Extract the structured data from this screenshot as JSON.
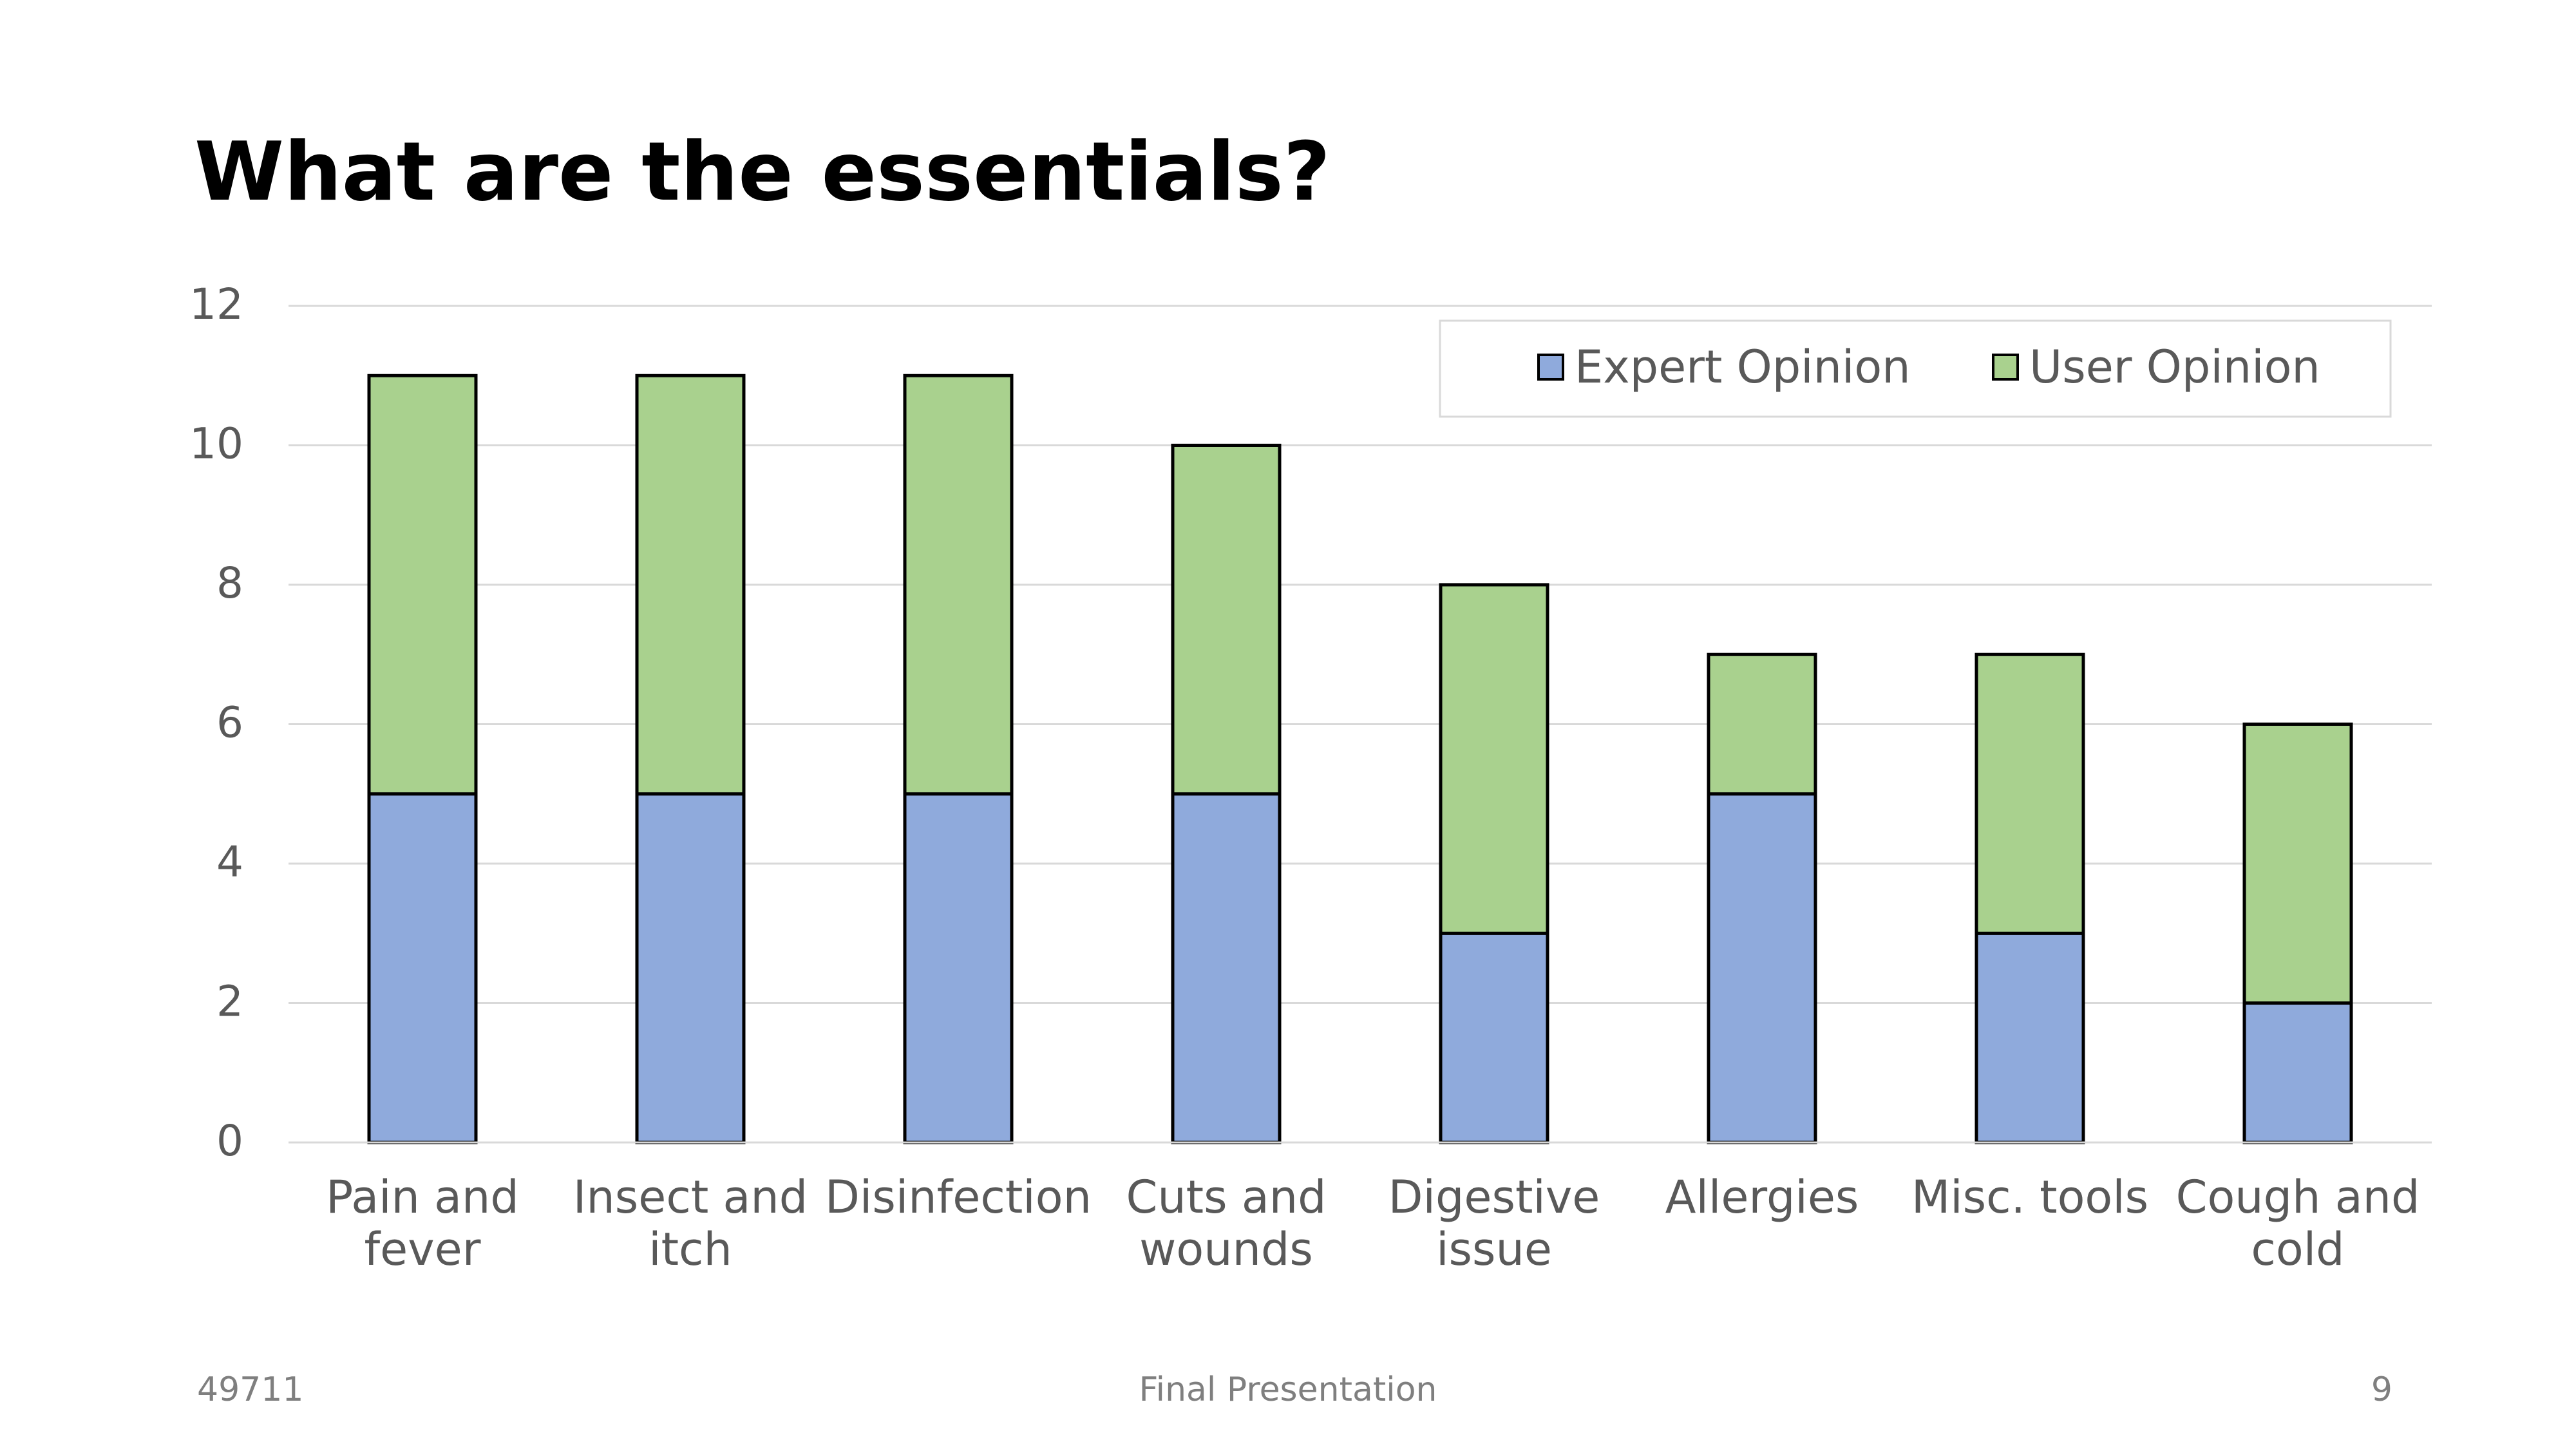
{
  "slide": {
    "title": "What are the essentials?",
    "footer_left": "49711",
    "footer_center": "Final Presentation",
    "footer_right": "9"
  },
  "chart_data": {
    "type": "bar",
    "stacked": true,
    "categories": [
      [
        "Pain and",
        "fever"
      ],
      [
        "Insect and",
        "itch"
      ],
      [
        "Disinfection"
      ],
      [
        "Cuts and",
        "wounds"
      ],
      [
        "Digestive",
        "issue"
      ],
      [
        "Allergies"
      ],
      [
        "Misc. tools"
      ],
      [
        "Cough and",
        "cold"
      ]
    ],
    "series": [
      {
        "name": "Expert Opinion",
        "color": "#8faadc",
        "values": [
          5,
          5,
          5,
          5,
          3,
          5,
          3,
          2
        ]
      },
      {
        "name": "User Opinion",
        "color": "#a9d18e",
        "values": [
          6,
          6,
          6,
          5,
          5,
          2,
          4,
          4
        ]
      }
    ],
    "ylim": [
      0,
      12
    ],
    "yticks": [
      "0",
      "2",
      "4",
      "6",
      "8",
      "10",
      "12"
    ],
    "grid": true,
    "legend_position": "top-right",
    "xlabel": "",
    "ylabel": ""
  }
}
